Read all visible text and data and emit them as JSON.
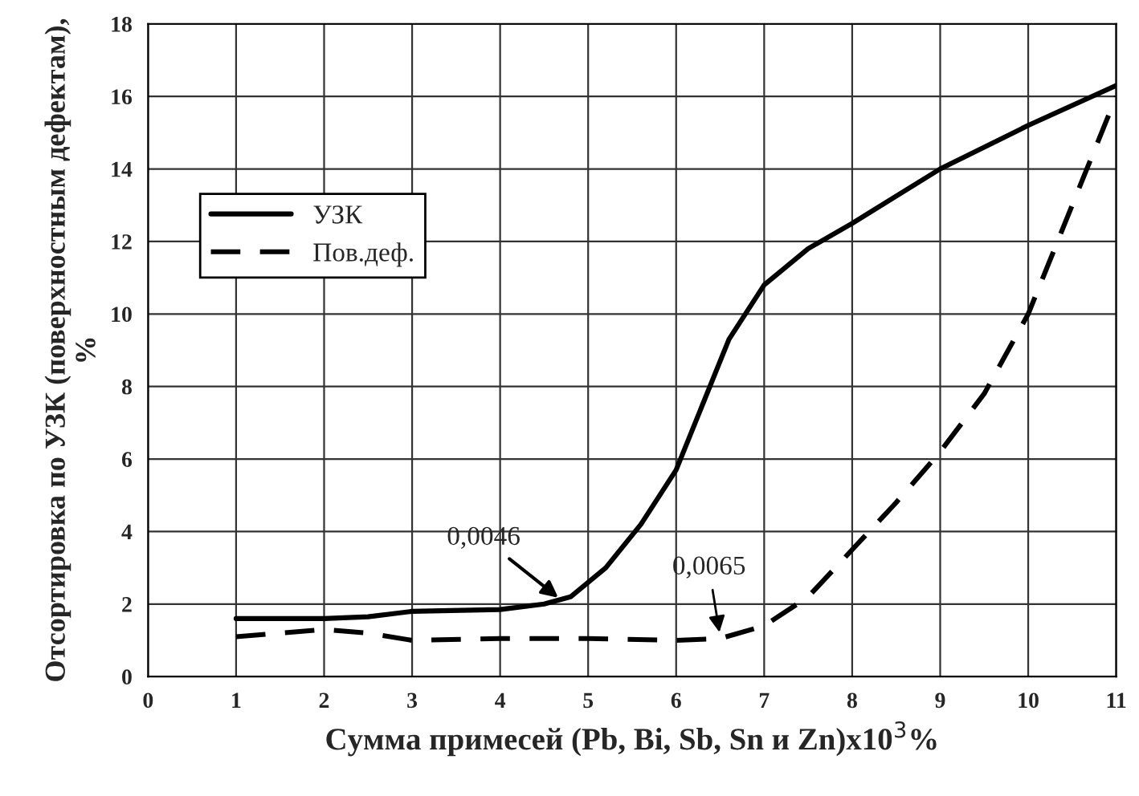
{
  "chart_data": {
    "type": "line",
    "xlabel": "Сумма примесей (Pb, Bi, Sb, Sn и Zn)x10$^{3}$%",
    "ylabel": "Отсортировка по УЗК (поверхностным дефектам), %",
    "xlim": [
      0,
      11
    ],
    "xticks": [
      0,
      1,
      2,
      3,
      4,
      5,
      6,
      7,
      8,
      9,
      10,
      11
    ],
    "ylim": [
      0,
      18
    ],
    "yticks": [
      0,
      2,
      4,
      6,
      8,
      10,
      12,
      14,
      16,
      18
    ],
    "grid": true,
    "legend": "left",
    "marker": "none",
    "series": [
      {
        "name": "УЗК",
        "color": "#000000",
        "line_style": "solid",
        "x": [
          1,
          2,
          2.5,
          3,
          4,
          4.5,
          4.8,
          5.2,
          5.6,
          6.0,
          6.3,
          6.6,
          7.0,
          7.5,
          8,
          9,
          10,
          11
        ],
        "values": [
          1.6,
          1.6,
          1.65,
          1.8,
          1.85,
          2.0,
          2.2,
          3.0,
          4.2,
          5.7,
          7.5,
          9.3,
          10.8,
          11.8,
          12.5,
          14.0,
          15.2,
          16.3
        ]
      },
      {
        "name": "Пов.деф.",
        "color": "#000000",
        "line_style": "dashed",
        "x": [
          1,
          2,
          2.5,
          3,
          4,
          5,
          6,
          6.5,
          7,
          7.5,
          8,
          8.5,
          9,
          9.5,
          10,
          10.5,
          11
        ],
        "values": [
          1.1,
          1.3,
          1.2,
          1.0,
          1.05,
          1.05,
          1.0,
          1.05,
          1.4,
          2.2,
          3.5,
          4.8,
          6.2,
          7.8,
          10.0,
          13.0,
          16.0
        ]
      }
    ],
    "annotations": [
      {
        "text": "0,0046",
        "x": 4.7,
        "y": 2.1
      },
      {
        "text": "0,0065",
        "x": 6.5,
        "y": 1.1
      }
    ]
  }
}
